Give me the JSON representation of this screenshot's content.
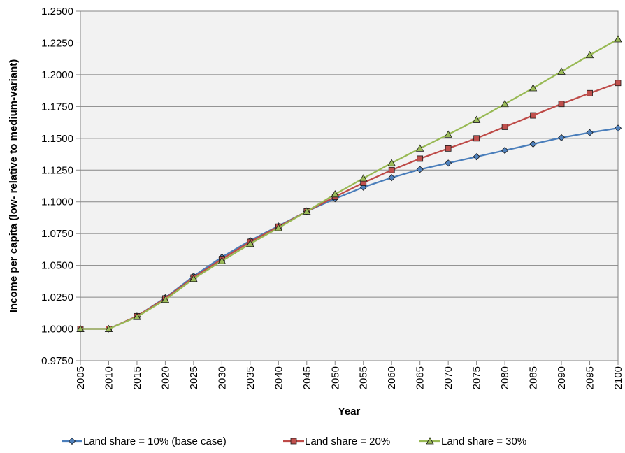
{
  "chart_data": {
    "type": "line",
    "title": "",
    "xlabel": "Year",
    "ylabel": "Income per capita (low- relative to medium-variant)",
    "x": [
      "2005",
      "2010",
      "2015",
      "2020",
      "2025",
      "2030",
      "2035",
      "2040",
      "2045",
      "2050",
      "2055",
      "2060",
      "2065",
      "2070",
      "2075",
      "2080",
      "2085",
      "2090",
      "2095",
      "2100"
    ],
    "ylim": [
      0.975,
      1.25
    ],
    "y_ticks": [
      "0.9750",
      "1.0000",
      "1.0250",
      "1.0500",
      "1.0750",
      "1.1000",
      "1.1250",
      "1.1500",
      "1.1750",
      "1.2000",
      "1.2250",
      "1.2500"
    ],
    "grid": "horizontal",
    "legend_position": "bottom",
    "plot_background": "#f2f2f2",
    "series": [
      {
        "name": "Land share = 10% (base case)",
        "color": "#4a7ebb",
        "fill": "#4f81bd",
        "marker": "diamond",
        "values": [
          1.0,
          1.0,
          1.01,
          1.0245,
          1.0415,
          1.0565,
          1.0695,
          1.081,
          1.0925,
          1.1025,
          1.1115,
          1.119,
          1.1255,
          1.1305,
          1.1355,
          1.1405,
          1.1455,
          1.1505,
          1.1545,
          1.158
        ]
      },
      {
        "name": "Land share = 20%",
        "color": "#be4b48",
        "fill": "#c0504d",
        "marker": "square",
        "values": [
          1.0,
          1.0,
          1.01,
          1.024,
          1.0405,
          1.055,
          1.0685,
          1.0805,
          1.0925,
          1.104,
          1.115,
          1.125,
          1.134,
          1.142,
          1.15,
          1.159,
          1.168,
          1.177,
          1.1855,
          1.1935
        ]
      },
      {
        "name": "Land share = 30%",
        "color": "#98b954",
        "fill": "#9bbb59",
        "marker": "triangle",
        "values": [
          1.0,
          1.0,
          1.0095,
          1.023,
          1.0395,
          1.0535,
          1.067,
          1.0795,
          1.0925,
          1.106,
          1.1185,
          1.1305,
          1.142,
          1.153,
          1.1645,
          1.177,
          1.1895,
          1.2025,
          1.2155,
          1.228
        ]
      }
    ]
  }
}
